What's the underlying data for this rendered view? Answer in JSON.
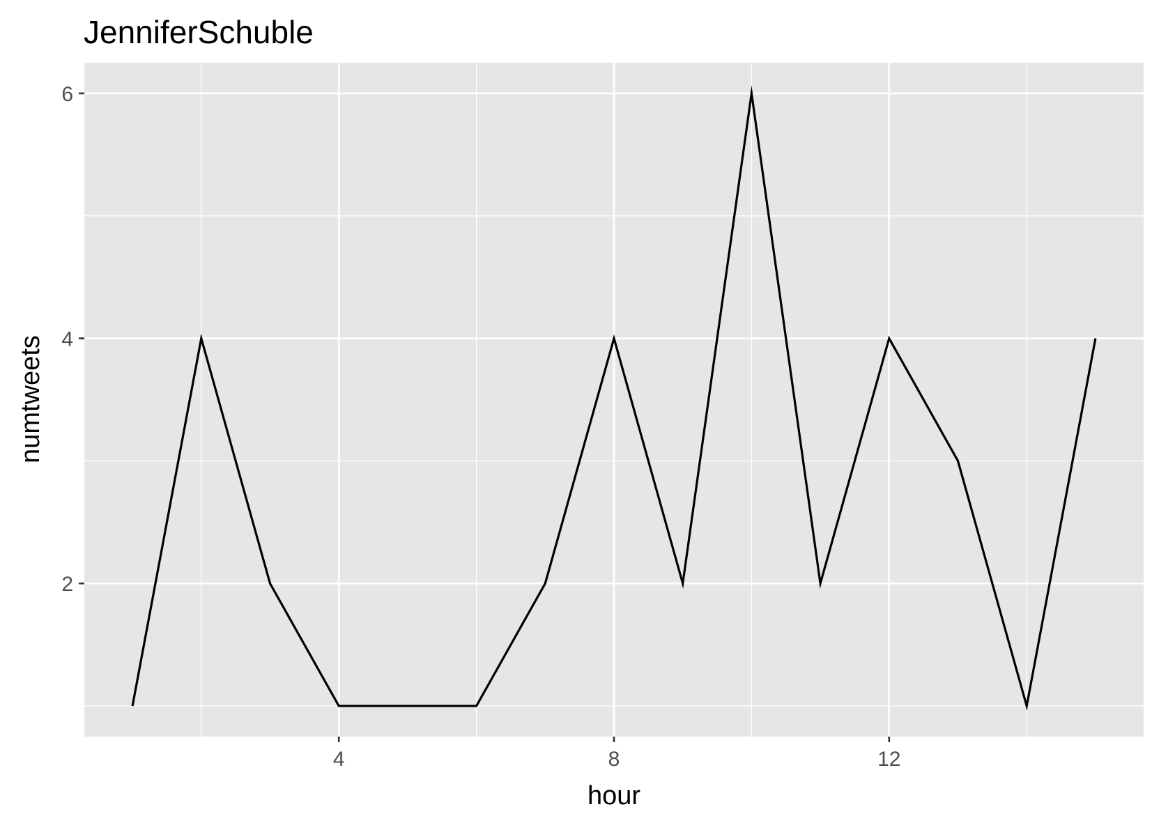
{
  "chart_data": {
    "type": "line",
    "title": "JenniferSchuble",
    "xlabel": "hour",
    "ylabel": "numtweets",
    "x": [
      1,
      2,
      3,
      4,
      5,
      6,
      7,
      8,
      9,
      10,
      11,
      12,
      13,
      14,
      15
    ],
    "series": [
      {
        "values": [
          1,
          4,
          2,
          1,
          1,
          1,
          2,
          4,
          2,
          6,
          2,
          4,
          3,
          1,
          4
        ]
      }
    ],
    "xlim": [
      0.3,
      15.7
    ],
    "ylim": [
      0.75,
      6.25
    ],
    "x_ticks": [
      4,
      8,
      12
    ],
    "x_tick_labels": [
      "4",
      "8",
      "12"
    ],
    "y_ticks": [
      2,
      4,
      6
    ],
    "y_tick_labels": [
      "2",
      "4",
      "6"
    ],
    "x_minor_ticks": [
      2,
      6,
      10,
      14
    ],
    "y_minor_ticks": [
      1,
      3,
      5
    ],
    "grid": true,
    "colors": {
      "panel": "#e6e6e6",
      "grid": "#ffffff",
      "line": "#000000",
      "tick_text": "#4d4d4d"
    }
  }
}
